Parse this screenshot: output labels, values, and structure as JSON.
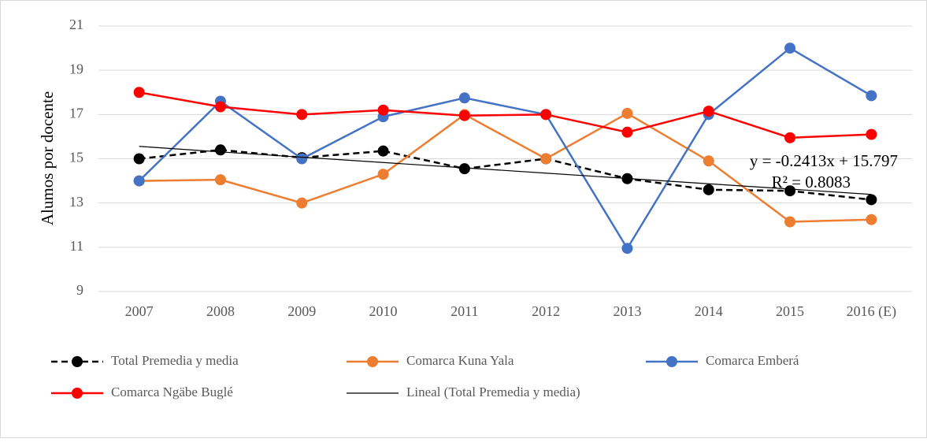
{
  "chart_data": {
    "type": "line",
    "y_label": "Alumos por docente",
    "categories": [
      "2007",
      "2008",
      "2009",
      "2010",
      "2011",
      "2012",
      "2013",
      "2014",
      "2015",
      "2016 (E)"
    ],
    "ylim": [
      9,
      21
    ],
    "yticks": [
      9,
      11,
      13,
      15,
      17,
      19,
      21
    ],
    "grid": true,
    "series": [
      {
        "name": "Total Premedia y media",
        "color": "#000000",
        "dash": true,
        "markers": true,
        "values": [
          15.0,
          15.4,
          15.05,
          15.35,
          14.55,
          15.0,
          14.1,
          13.6,
          13.55,
          13.15
        ]
      },
      {
        "name": "Comarca Kuna Yala",
        "color": "#ed7d31",
        "dash": false,
        "markers": true,
        "values": [
          14.0,
          14.05,
          13.0,
          14.3,
          17.0,
          15.0,
          17.05,
          14.9,
          12.15,
          12.25
        ]
      },
      {
        "name": "Comarca Emberá",
        "color": "#4472c4",
        "dash": false,
        "markers": true,
        "values": [
          14.0,
          17.6,
          15.0,
          16.9,
          17.75,
          17.0,
          10.95,
          17.0,
          20.0,
          17.85
        ]
      },
      {
        "name": "Comarca Ngäbe Buglé",
        "color": "#ff0000",
        "dash": false,
        "markers": true,
        "values": [
          18.0,
          17.35,
          17.0,
          17.2,
          16.95,
          17.0,
          16.2,
          17.15,
          15.95,
          16.1
        ]
      },
      {
        "name": "Lineal (Total Premedia y media)",
        "color": "#000000",
        "dash": false,
        "markers": false,
        "values": [
          15.56,
          15.31,
          15.07,
          14.83,
          14.59,
          14.35,
          14.11,
          13.87,
          13.63,
          13.39
        ]
      }
    ],
    "annotations": [
      "y = -0.2413x + 15.797",
      "R² = 0.8083"
    ]
  }
}
